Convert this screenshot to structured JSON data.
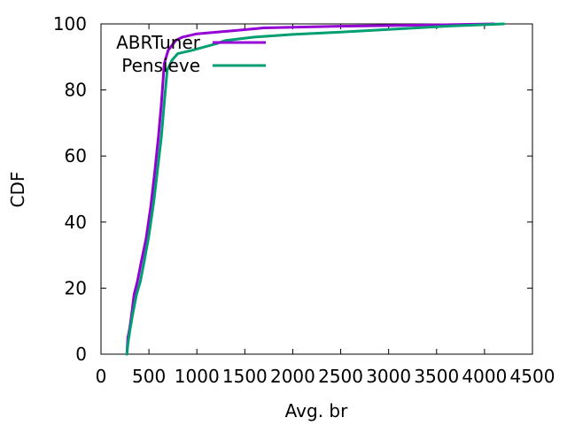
{
  "chart_data": {
    "type": "line",
    "title": "",
    "xlabel": "Avg. br",
    "ylabel": "CDF",
    "xlim": [
      0,
      4500
    ],
    "ylim": [
      0,
      100
    ],
    "xticks": [
      0,
      500,
      1000,
      1500,
      2000,
      2500,
      3000,
      3500,
      4000,
      4500
    ],
    "yticks": [
      0,
      20,
      40,
      60,
      80,
      100
    ],
    "grid": false,
    "legend": "top-left",
    "series": [
      {
        "name": "ABRTuner",
        "color": "#9400d3",
        "points": [
          [
            270,
            0
          ],
          [
            280,
            5
          ],
          [
            300,
            8
          ],
          [
            320,
            12
          ],
          [
            345,
            18
          ],
          [
            380,
            22
          ],
          [
            420,
            28
          ],
          [
            470,
            35
          ],
          [
            520,
            45
          ],
          [
            560,
            55
          ],
          [
            600,
            66
          ],
          [
            630,
            76
          ],
          [
            660,
            88
          ],
          [
            700,
            92
          ],
          [
            780,
            95
          ],
          [
            850,
            96
          ],
          [
            1000,
            97
          ],
          [
            1400,
            98
          ],
          [
            1700,
            98.8
          ],
          [
            2500,
            99.3
          ],
          [
            3500,
            99.7
          ],
          [
            4100,
            100
          ]
        ]
      },
      {
        "name": "Pensieve",
        "color": "#009e73",
        "points": [
          [
            270,
            0
          ],
          [
            280,
            3
          ],
          [
            300,
            7
          ],
          [
            330,
            12
          ],
          [
            370,
            18
          ],
          [
            410,
            22
          ],
          [
            450,
            28
          ],
          [
            500,
            36
          ],
          [
            550,
            46
          ],
          [
            590,
            56
          ],
          [
            630,
            66
          ],
          [
            660,
            76
          ],
          [
            690,
            86
          ],
          [
            740,
            89
          ],
          [
            800,
            91
          ],
          [
            950,
            92
          ],
          [
            1200,
            94
          ],
          [
            1300,
            95
          ],
          [
            1600,
            96
          ],
          [
            2000,
            96.8
          ],
          [
            2500,
            97.5
          ],
          [
            3000,
            98.3
          ],
          [
            3600,
            99.3
          ],
          [
            4200,
            100
          ]
        ]
      }
    ]
  }
}
